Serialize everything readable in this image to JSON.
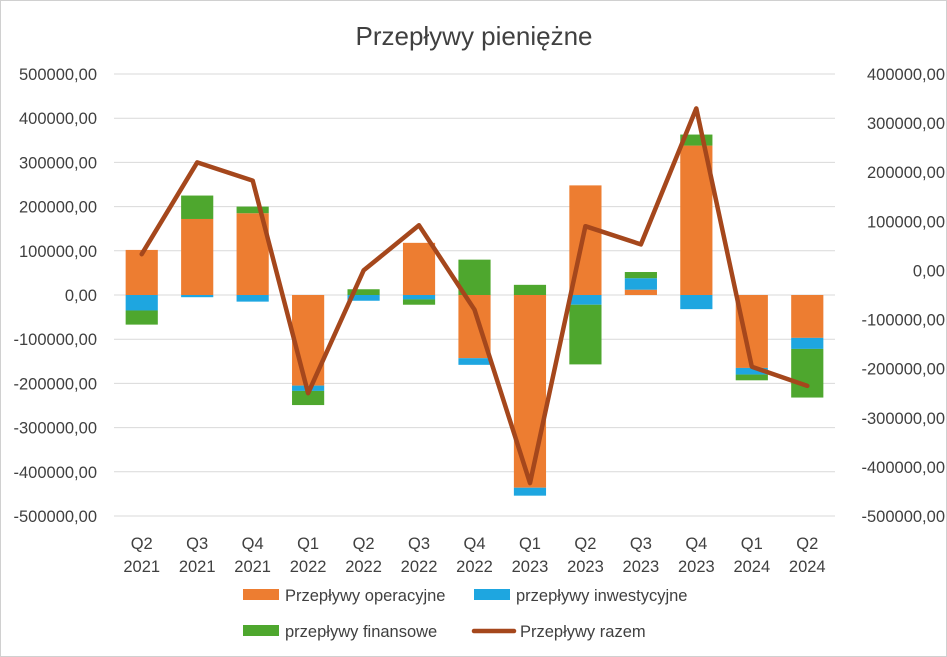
{
  "chart_data": {
    "type": "bar",
    "stacked": true,
    "title": "Przepływy pieniężne",
    "categories": [
      [
        "Q2",
        "2021"
      ],
      [
        "Q3",
        "2021"
      ],
      [
        "Q4",
        "2021"
      ],
      [
        "Q1",
        "2022"
      ],
      [
        "Q2",
        "2022"
      ],
      [
        "Q3",
        "2022"
      ],
      [
        "Q4",
        "2022"
      ],
      [
        "Q1",
        "2023"
      ],
      [
        "Q2",
        "2023"
      ],
      [
        "Q3",
        "2023"
      ],
      [
        "Q4",
        "2023"
      ],
      [
        "Q1",
        "2024"
      ],
      [
        "Q2",
        "2024"
      ]
    ],
    "y_left": {
      "min": -500000,
      "max": 500000,
      "step": 100000,
      "tick_labels": [
        "500000,00",
        "400000,00",
        "300000,00",
        "200000,00",
        "100000,00",
        "0,00",
        "-100000,00",
        "-200000,00",
        "-300000,00",
        "-400000,00",
        "-500000,00"
      ]
    },
    "y_right": {
      "min": -500000,
      "max": 400000,
      "step": 100000,
      "tick_labels": [
        "400000,00",
        "300000,00",
        "200000,00",
        "100000,00",
        "0,00",
        "-100000,00",
        "-200000,00",
        "-300000,00",
        "-400000,00",
        "-500000,00"
      ]
    },
    "series": [
      {
        "name": "Przepływy operacyjne",
        "type": "bar",
        "axis": "left",
        "color": "#ed7d31",
        "values": [
          102000,
          172000,
          185000,
          -205000,
          0,
          118000,
          -143000,
          -436000,
          248000,
          12000,
          338000,
          -165000,
          -97000
        ]
      },
      {
        "name": "przepływy inwestycyjne",
        "type": "bar",
        "axis": "left",
        "color": "#1ea6e0",
        "values": [
          -35000,
          -5000,
          -15000,
          -12000,
          -13000,
          -10000,
          -15000,
          -18000,
          -22000,
          26000,
          -32000,
          -15000,
          -25000
        ]
      },
      {
        "name": "przepływy finansowe",
        "type": "bar",
        "axis": "left",
        "color": "#4ea72e",
        "values": [
          -32000,
          53000,
          15000,
          -32000,
          13000,
          -12000,
          80000,
          23000,
          -135000,
          14000,
          25000,
          -13000,
          -110000
        ]
      },
      {
        "name": "Przepływy razem",
        "type": "line",
        "axis": "right",
        "color": "#a5471c",
        "values": [
          33000,
          220000,
          183000,
          -250000,
          0,
          92000,
          -80000,
          -433000,
          90000,
          53000,
          330000,
          -196000,
          -235000
        ]
      }
    ],
    "legend": {
      "position": "bottom",
      "order": [
        "Przepływy operacyjne",
        "przepływy inwestycyjne",
        "przepływy finansowe",
        "Przepływy razem"
      ]
    }
  }
}
